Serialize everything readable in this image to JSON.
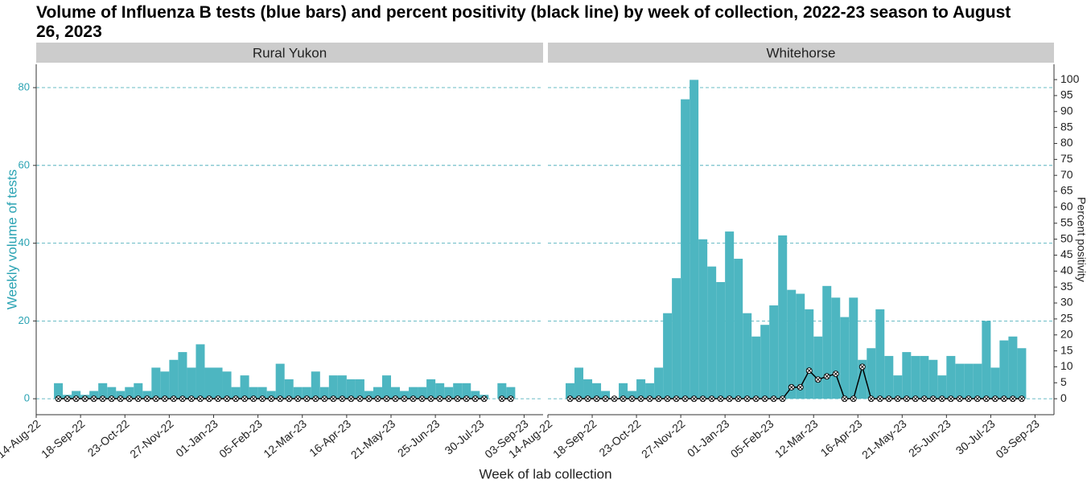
{
  "title": "Volume of Influenza B tests (blue bars) and percent positivity (black line) by week of collection, 2022-23 season to August 26, 2023",
  "x_label": "Week of lab collection",
  "y_label": "Weekly volume of tests",
  "y2_label": "Percent positivity",
  "chart_data": [
    {
      "type": "bar",
      "title": "Rural Yukon",
      "x": [
        "2022-08-28",
        "2022-09-04",
        "2022-09-11",
        "2022-09-18",
        "2022-09-25",
        "2022-10-02",
        "2022-10-09",
        "2022-10-16",
        "2022-10-23",
        "2022-10-30",
        "2022-11-06",
        "2022-11-13",
        "2022-11-20",
        "2022-11-27",
        "2022-12-04",
        "2022-12-11",
        "2022-12-18",
        "2022-12-25",
        "2023-01-01",
        "2023-01-08",
        "2023-01-15",
        "2023-01-22",
        "2023-01-29",
        "2023-02-05",
        "2023-02-12",
        "2023-02-19",
        "2023-02-26",
        "2023-03-05",
        "2023-03-12",
        "2023-03-19",
        "2023-03-26",
        "2023-04-02",
        "2023-04-09",
        "2023-04-16",
        "2023-04-23",
        "2023-04-30",
        "2023-05-07",
        "2023-05-14",
        "2023-05-21",
        "2023-05-28",
        "2023-06-04",
        "2023-06-11",
        "2023-06-18",
        "2023-06-25",
        "2023-07-02",
        "2023-07-09",
        "2023-07-16",
        "2023-07-23",
        "2023-07-30",
        "2023-08-06",
        "2023-08-13",
        "2023-08-20"
      ],
      "series": [
        {
          "color": "#4db6c1",
          "values": [
            4,
            1,
            2,
            1,
            2,
            4,
            3,
            2,
            3,
            4,
            2,
            8,
            7,
            10,
            12,
            8,
            14,
            8,
            8,
            7,
            3,
            6,
            3,
            3,
            2,
            9,
            5,
            3,
            3,
            7,
            3,
            6,
            6,
            5,
            5,
            2,
            3,
            6,
            3,
            2,
            3,
            3,
            5,
            4,
            3,
            4,
            4,
            2,
            1,
            null,
            4,
            3
          ]
        },
        {
          "type": "line",
          "axis": "y2",
          "color": "#000000",
          "values": [
            0,
            0,
            0,
            0,
            0,
            0,
            0,
            0,
            0,
            0,
            0,
            0,
            0,
            0,
            0,
            0,
            0,
            0,
            0,
            0,
            0,
            0,
            0,
            0,
            0,
            0,
            0,
            0,
            0,
            0,
            0,
            0,
            0,
            0,
            0,
            0,
            0,
            0,
            0,
            0,
            0,
            0,
            0,
            0,
            0,
            0,
            0,
            0,
            0,
            null,
            0,
            0
          ]
        }
      ],
      "xlim": [
        "2022-08-14",
        "2023-09-18"
      ],
      "xticks": [
        {
          "value": "2022-08-14",
          "label": "14-Aug-22"
        },
        {
          "value": "2022-09-18",
          "label": "18-Sep-22"
        },
        {
          "value": "2022-10-23",
          "label": "23-Oct-22"
        },
        {
          "value": "2022-11-27",
          "label": "27-Nov-22"
        },
        {
          "value": "2023-01-01",
          "label": "01-Jan-23"
        },
        {
          "value": "2023-02-05",
          "label": "05-Feb-23"
        },
        {
          "value": "2023-03-12",
          "label": "12-Mar-23"
        },
        {
          "value": "2023-04-16",
          "label": "16-Apr-23"
        },
        {
          "value": "2023-05-21",
          "label": "21-May-23"
        },
        {
          "value": "2023-06-25",
          "label": "25-Jun-23"
        },
        {
          "value": "2023-07-30",
          "label": "30-Jul-23"
        },
        {
          "value": "2023-09-03",
          "label": "03-Sep-23"
        }
      ],
      "ylim": [
        -4.1,
        86
      ],
      "yticks": [
        0,
        20,
        40,
        60,
        80
      ],
      "grid": true
    },
    {
      "type": "bar",
      "title": "Whitehorse",
      "x": [
        "2022-08-28",
        "2022-09-04",
        "2022-09-11",
        "2022-09-18",
        "2022-09-25",
        "2022-10-02",
        "2022-10-09",
        "2022-10-16",
        "2022-10-23",
        "2022-10-30",
        "2022-11-06",
        "2022-11-13",
        "2022-11-20",
        "2022-11-27",
        "2022-12-04",
        "2022-12-11",
        "2022-12-18",
        "2022-12-25",
        "2023-01-01",
        "2023-01-08",
        "2023-01-15",
        "2023-01-22",
        "2023-01-29",
        "2023-02-05",
        "2023-02-12",
        "2023-02-19",
        "2023-02-26",
        "2023-03-05",
        "2023-03-12",
        "2023-03-19",
        "2023-03-26",
        "2023-04-02",
        "2023-04-09",
        "2023-04-16",
        "2023-04-23",
        "2023-04-30",
        "2023-05-07",
        "2023-05-14",
        "2023-05-21",
        "2023-05-28",
        "2023-06-04",
        "2023-06-11",
        "2023-06-18",
        "2023-06-25",
        "2023-07-02",
        "2023-07-09",
        "2023-07-16",
        "2023-07-23",
        "2023-07-30",
        "2023-08-06",
        "2023-08-13",
        "2023-08-20"
      ],
      "series": [
        {
          "color": "#4db6c1",
          "values": [
            4,
            8,
            5,
            4,
            2,
            0,
            4,
            2,
            5,
            4,
            8,
            22,
            31,
            77,
            82,
            41,
            34,
            30,
            43,
            36,
            22,
            16,
            19,
            24,
            42,
            28,
            27,
            23,
            16,
            29,
            26,
            21,
            26,
            10,
            13,
            23,
            11,
            6,
            12,
            11,
            11,
            10,
            6,
            11,
            9,
            9,
            9,
            20,
            8,
            15,
            16,
            13
          ]
        },
        {
          "type": "line",
          "axis": "y2",
          "color": "#000000",
          "values": [
            0,
            0,
            0,
            0,
            0,
            0,
            0,
            0,
            0,
            0,
            0,
            0,
            0,
            0,
            0,
            0,
            0,
            0,
            0,
            0,
            0,
            0,
            0,
            0,
            0,
            3.6,
            3.6,
            8.8,
            6,
            7,
            7.8,
            0,
            0,
            10,
            0,
            0,
            0,
            0,
            0,
            0,
            0,
            0,
            0,
            0,
            0,
            0,
            0,
            0,
            0,
            0,
            0,
            0
          ]
        }
      ],
      "xlim": [
        "2022-08-14",
        "2023-09-18"
      ],
      "xticks": [
        {
          "value": "2022-08-14",
          "label": "14-Aug-22"
        },
        {
          "value": "2022-09-18",
          "label": "18-Sep-22"
        },
        {
          "value": "2022-10-23",
          "label": "23-Oct-22"
        },
        {
          "value": "2022-11-27",
          "label": "27-Nov-22"
        },
        {
          "value": "2023-01-01",
          "label": "01-Jan-23"
        },
        {
          "value": "2023-02-05",
          "label": "05-Feb-23"
        },
        {
          "value": "2023-03-12",
          "label": "12-Mar-23"
        },
        {
          "value": "2023-04-16",
          "label": "16-Apr-23"
        },
        {
          "value": "2023-05-21",
          "label": "21-May-23"
        },
        {
          "value": "2023-06-25",
          "label": "25-Jun-23"
        },
        {
          "value": "2023-07-30",
          "label": "30-Jul-23"
        },
        {
          "value": "2023-09-03",
          "label": "03-Sep-23"
        }
      ],
      "y2lim": [
        -5,
        104.8
      ],
      "y2ticks": [
        0,
        5,
        10,
        15,
        20,
        25,
        30,
        35,
        40,
        45,
        50,
        55,
        60,
        65,
        70,
        75,
        80,
        85,
        90,
        95,
        100
      ],
      "grid": true
    }
  ]
}
